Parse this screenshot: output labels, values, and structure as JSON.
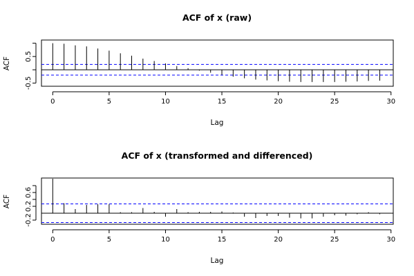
{
  "chart_data": [
    {
      "type": "bar",
      "title": "ACF of x (raw)",
      "xlabel": "Lag",
      "ylabel": "ACF",
      "xlim": [
        -1,
        30.2
      ],
      "ylim": [
        -0.62,
        1.12
      ],
      "xticks": [
        0,
        5,
        10,
        15,
        20,
        25,
        30
      ],
      "yticks": [
        -0.5,
        0.5
      ],
      "yticks_minor": [
        0,
        1
      ],
      "conf_bound": 0.2,
      "lags": [
        0,
        1,
        2,
        3,
        4,
        5,
        6,
        7,
        8,
        9,
        10,
        11,
        12,
        13,
        14,
        15,
        16,
        17,
        18,
        19,
        20,
        21,
        22,
        23,
        24,
        25,
        26,
        27,
        28,
        29
      ],
      "values": [
        1.0,
        0.98,
        0.92,
        0.88,
        0.8,
        0.72,
        0.62,
        0.53,
        0.42,
        0.33,
        0.24,
        0.14,
        0.06,
        -0.03,
        -0.11,
        -0.19,
        -0.26,
        -0.32,
        -0.37,
        -0.4,
        -0.43,
        -0.45,
        -0.46,
        -0.46,
        -0.46,
        -0.46,
        -0.45,
        -0.44,
        -0.42,
        -0.41
      ],
      "colors": {
        "bars": "#000000",
        "ci": "#0000ff"
      }
    },
    {
      "type": "bar",
      "title": "ACF of x (transformed and differenced)",
      "xlabel": "Lag",
      "ylabel": "ACF",
      "xlim": [
        -1,
        30.2
      ],
      "ylim": [
        -0.32,
        1.02
      ],
      "xticks": [
        0,
        5,
        10,
        15,
        20,
        25,
        30
      ],
      "yticks": [
        -0.2,
        0.2,
        0.6
      ],
      "yticks_minor": [
        0.4,
        0.8
      ],
      "conf_bound": 0.27,
      "lags": [
        0,
        1,
        2,
        3,
        4,
        5,
        6,
        7,
        8,
        9,
        10,
        11,
        12,
        13,
        14,
        15,
        16,
        17,
        18,
        19,
        20,
        21,
        22,
        23,
        24,
        25,
        26,
        27,
        28,
        29
      ],
      "values": [
        1.0,
        0.29,
        0.12,
        0.24,
        0.26,
        0.26,
        0.03,
        0.03,
        0.15,
        0.04,
        -0.1,
        0.12,
        0.03,
        0.04,
        0.04,
        0.05,
        0.02,
        -0.1,
        -0.14,
        -0.08,
        -0.08,
        -0.13,
        -0.15,
        -0.15,
        -0.1,
        -0.06,
        -0.07,
        -0.03,
        0.03,
        -0.03
      ],
      "colors": {
        "bars": "#000000",
        "ci": "#0000ff"
      }
    }
  ]
}
